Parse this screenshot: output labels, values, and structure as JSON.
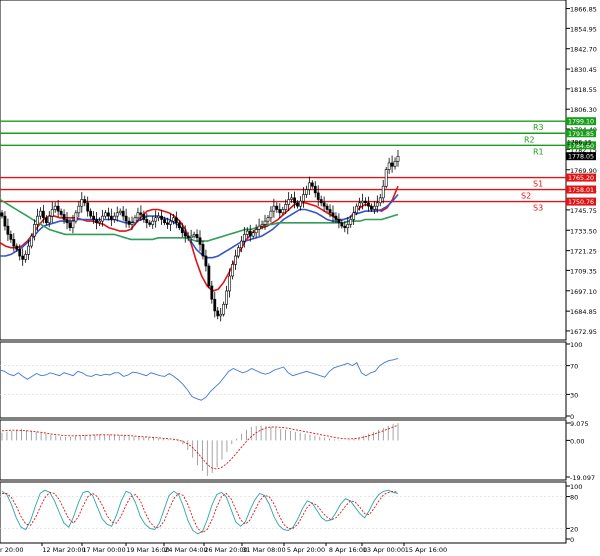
{
  "chart_data": [
    {
      "type": "candlestick",
      "panel": "price",
      "ylim": [
        1667.5,
        1872.0
      ],
      "y_ticks": [
        "1866.85",
        "1854.95",
        "1842.70",
        "1830.45",
        "1818.55",
        "1806.30",
        "1794.40",
        "1782.15",
        "1769.90",
        "1757.65",
        "1745.75",
        "1733.50",
        "1721.25",
        "1709.35",
        "1697.10",
        "1684.85",
        "1672.95"
      ],
      "x_labels": [
        "12 Mar 20:00",
        "17 Mar 00:00",
        "19 Mar 16:00",
        "24 Mar 04:00",
        "26 Mar 20:00",
        "31 Mar 08:00",
        "5 Apr 20:00",
        "8 Apr 16:00",
        "13 Apr 00:00",
        "15 Apr 16:00"
      ],
      "first_x_label_partial": "r 20:00",
      "levels": [
        {
          "name": "R3",
          "value": 1799.1,
          "color": "#1a9e1a"
        },
        {
          "name": "R2",
          "value": 1791.85,
          "color": "#1a9e1a"
        },
        {
          "name": "R1",
          "value": 1784.6,
          "color": "#1a9e1a"
        },
        {
          "name": "S1",
          "value": 1765.2,
          "color": "#e01414"
        },
        {
          "name": "S2",
          "value": 1758.01,
          "color": "#e01414"
        },
        {
          "name": "S3",
          "value": 1750.76,
          "color": "#e01414"
        }
      ],
      "last_price": "1778.05",
      "partial_label": "1786.15",
      "close_series": [
        1742,
        1736,
        1731,
        1728,
        1724,
        1722,
        1718,
        1716,
        1719,
        1724,
        1730,
        1737,
        1742,
        1745,
        1741,
        1738,
        1742,
        1746,
        1748,
        1745,
        1743,
        1740,
        1738,
        1735,
        1739,
        1744,
        1748,
        1752,
        1750,
        1745,
        1742,
        1740,
        1738,
        1739,
        1742,
        1744,
        1742,
        1740,
        1742,
        1744,
        1745,
        1742,
        1739,
        1737,
        1738,
        1741,
        1744,
        1743,
        1740,
        1738,
        1737,
        1739,
        1741,
        1742,
        1740,
        1738,
        1737,
        1739,
        1741,
        1738,
        1735,
        1732,
        1730,
        1729,
        1730,
        1731,
        1729,
        1725,
        1718,
        1712,
        1700,
        1692,
        1685,
        1682,
        1683,
        1689,
        1697,
        1706,
        1713,
        1718,
        1723,
        1727,
        1731,
        1733,
        1730,
        1732,
        1734,
        1736,
        1737,
        1739,
        1741,
        1745,
        1748,
        1746,
        1744,
        1746,
        1749,
        1752,
        1753,
        1750,
        1748,
        1751,
        1755,
        1758,
        1762,
        1760,
        1756,
        1752,
        1750,
        1748,
        1746,
        1744,
        1742,
        1740,
        1738,
        1736,
        1735,
        1737,
        1740,
        1744,
        1748,
        1750,
        1751,
        1750,
        1748,
        1746,
        1748,
        1750,
        1753,
        1760,
        1770,
        1774,
        1772,
        1775,
        1778
      ],
      "ma_series": [
        {
          "name": "MA fast",
          "color": "#e01414",
          "values": [
            1726,
            1724,
            1723,
            1723,
            1724,
            1727,
            1731,
            1736,
            1740,
            1742,
            1742,
            1741,
            1741,
            1741,
            1741,
            1740,
            1739,
            1739,
            1738,
            1737,
            1735,
            1734,
            1733,
            1733,
            1734,
            1738,
            1742,
            1745,
            1746,
            1746,
            1745,
            1744,
            1742,
            1739,
            1734,
            1726,
            1715,
            1706,
            1700,
            1697,
            1698,
            1702,
            1708,
            1715,
            1721,
            1727,
            1731,
            1734,
            1735,
            1736,
            1738,
            1740,
            1743,
            1746,
            1749,
            1750,
            1750,
            1749,
            1748,
            1746,
            1744,
            1742,
            1740,
            1740,
            1741,
            1744,
            1747,
            1749,
            1748,
            1746,
            1745,
            1747,
            1752,
            1760
          ]
        },
        {
          "name": "MA medium",
          "color": "#3355cc",
          "values": [
            1718,
            1718,
            1719,
            1721,
            1723,
            1726,
            1729,
            1733,
            1736,
            1737,
            1738,
            1739,
            1739,
            1739,
            1740,
            1740,
            1740,
            1740,
            1740,
            1740,
            1740,
            1740,
            1739,
            1738,
            1738,
            1739,
            1740,
            1742,
            1742,
            1742,
            1741,
            1740,
            1738,
            1736,
            1732,
            1727,
            1722,
            1719,
            1717,
            1717,
            1718,
            1720,
            1722,
            1724,
            1726,
            1727,
            1728,
            1729,
            1730,
            1732,
            1734,
            1737,
            1740,
            1742,
            1744,
            1746,
            1746,
            1745,
            1744,
            1742,
            1740,
            1739,
            1739,
            1740,
            1741,
            1743,
            1744,
            1745,
            1745,
            1745,
            1746,
            1748,
            1751,
            1755
          ]
        },
        {
          "name": "MA slow",
          "color": "#2e9e58",
          "values": [
            1752,
            1750,
            1748,
            1746,
            1744,
            1742,
            1740,
            1738,
            1736,
            1734,
            1733,
            1732,
            1731,
            1731,
            1731,
            1731,
            1731,
            1731,
            1731,
            1731,
            1731,
            1731,
            1730,
            1729,
            1728,
            1728,
            1728,
            1728,
            1728,
            1729,
            1729,
            1729,
            1729,
            1729,
            1729,
            1728,
            1727,
            1727,
            1727,
            1728,
            1729,
            1730,
            1731,
            1732,
            1733,
            1734,
            1734,
            1735,
            1736,
            1737,
            1737,
            1738,
            1738,
            1738,
            1738,
            1738,
            1738,
            1738,
            1738,
            1738,
            1738,
            1738,
            1738,
            1738,
            1739,
            1739,
            1739,
            1740,
            1740,
            1740,
            1740,
            1741,
            1742,
            1743
          ]
        }
      ]
    },
    {
      "type": "line",
      "panel": "rsi",
      "ylim": [
        0,
        100
      ],
      "y_ticks": [
        "100",
        "70",
        "30",
        "0"
      ],
      "color": "#3f78d8",
      "values": [
        64,
        62,
        58,
        56,
        60,
        55,
        51,
        55,
        59,
        56,
        57,
        60,
        58,
        56,
        60,
        58,
        56,
        62,
        60,
        56,
        55,
        58,
        56,
        58,
        57,
        60,
        60,
        55,
        57,
        61,
        60,
        58,
        56,
        60,
        58,
        56,
        55,
        59,
        55,
        50,
        44,
        36,
        27,
        24,
        22,
        26,
        34,
        40,
        46,
        54,
        62,
        66,
        63,
        60,
        62,
        66,
        63,
        60,
        58,
        60,
        64,
        66,
        68,
        60,
        56,
        58,
        60,
        62,
        60,
        58,
        56,
        54,
        62,
        67,
        69,
        71,
        73,
        70,
        74,
        60,
        56,
        60,
        62,
        70,
        74,
        77,
        78,
        80
      ]
    },
    {
      "type": "bar",
      "panel": "macd",
      "ylim": [
        -19.097,
        9.075
      ],
      "y_ticks": [
        "9.075",
        "0.00",
        "-19.097"
      ],
      "hist_color": "#9a9a9a",
      "signal_color": "#e01414",
      "histogram": [
        4,
        4.5,
        5,
        5.5,
        6,
        5.5,
        5,
        4.5,
        4,
        3.5,
        3,
        2.5,
        2,
        1.8,
        1.8,
        2,
        2.3,
        2.6,
        2.8,
        3,
        3.2,
        3.1,
        3,
        2.8,
        2.6,
        2.4,
        2.2,
        2,
        1.8,
        1.6,
        1.4,
        1.2,
        1,
        0.8,
        0.5,
        0.2,
        -0.5,
        -2,
        -5,
        -9,
        -13,
        -16,
        -18.5,
        -17,
        -14,
        -10,
        -6,
        -2,
        1,
        3.5,
        5.5,
        7,
        7.5,
        7.8,
        7.5,
        7,
        6.5,
        6,
        5.5,
        5,
        4.5,
        4,
        3.5,
        3,
        2.5,
        2,
        1.5,
        1,
        0.5,
        0.2,
        0,
        0.3,
        0.8,
        1.5,
        2.5,
        3.5,
        4.5,
        5.5,
        6.5,
        7.5,
        8.5,
        9
      ],
      "signal": [
        5,
        5.2,
        5.3,
        5.3,
        5.2,
        5,
        4.8,
        4.5,
        4.2,
        3.8,
        3.4,
        3,
        2.7,
        2.5,
        2.4,
        2.4,
        2.5,
        2.6,
        2.7,
        2.8,
        2.9,
        2.9,
        2.9,
        2.8,
        2.7,
        2.6,
        2.5,
        2.3,
        2.1,
        1.9,
        1.7,
        1.5,
        1.3,
        1.1,
        0.9,
        0.6,
        0.2,
        -0.5,
        -1.8,
        -3.8,
        -6.5,
        -9.5,
        -12.5,
        -14.5,
        -15,
        -14,
        -12,
        -9.5,
        -6.5,
        -3.5,
        -0.5,
        2,
        4,
        5.5,
        6.5,
        7,
        7,
        6.8,
        6.5,
        6.1,
        5.6,
        5.1,
        4.6,
        4.1,
        3.6,
        3.1,
        2.6,
        2.1,
        1.6,
        1.2,
        0.9,
        0.8,
        0.9,
        1.2,
        1.7,
        2.4,
        3.2,
        4.1,
        5,
        6,
        7,
        8
      ]
    },
    {
      "type": "line",
      "panel": "stochastic",
      "ylim": [
        0,
        100
      ],
      "y_ticks": [
        "100",
        "80",
        "20",
        "0"
      ],
      "main_color": "#2aa6a6",
      "signal_color": "#e01414",
      "main": [
        90,
        84,
        65,
        40,
        22,
        18,
        35,
        62,
        86,
        92,
        88,
        72,
        50,
        30,
        22,
        42,
        68,
        88,
        90,
        82,
        60,
        38,
        28,
        24,
        45,
        72,
        90,
        86,
        68,
        42,
        28,
        20,
        18,
        30,
        56,
        82,
        90,
        84,
        62,
        34,
        16,
        10,
        14,
        36,
        64,
        84,
        88,
        80,
        56,
        32,
        24,
        32,
        55,
        74,
        86,
        82,
        66,
        42,
        26,
        18,
        16,
        22,
        38,
        58,
        72,
        68,
        54,
        40,
        34,
        36,
        50,
        66,
        76,
        72,
        60,
        48,
        40,
        54,
        72,
        84,
        90,
        92,
        88,
        86
      ],
      "signal": [
        86,
        86,
        78,
        62,
        42,
        28,
        26,
        40,
        60,
        78,
        88,
        86,
        74,
        56,
        38,
        30,
        42,
        62,
        80,
        86,
        80,
        64,
        44,
        32,
        30,
        44,
        64,
        80,
        84,
        72,
        50,
        32,
        22,
        22,
        34,
        56,
        76,
        86,
        82,
        64,
        40,
        20,
        12,
        18,
        36,
        60,
        80,
        86,
        76,
        56,
        36,
        28,
        36,
        54,
        72,
        82,
        80,
        66,
        46,
        28,
        20,
        20,
        28,
        44,
        60,
        68,
        64,
        52,
        42,
        36,
        40,
        50,
        62,
        72,
        70,
        60,
        48,
        46,
        58,
        72,
        84,
        88,
        90,
        88
      ]
    }
  ]
}
